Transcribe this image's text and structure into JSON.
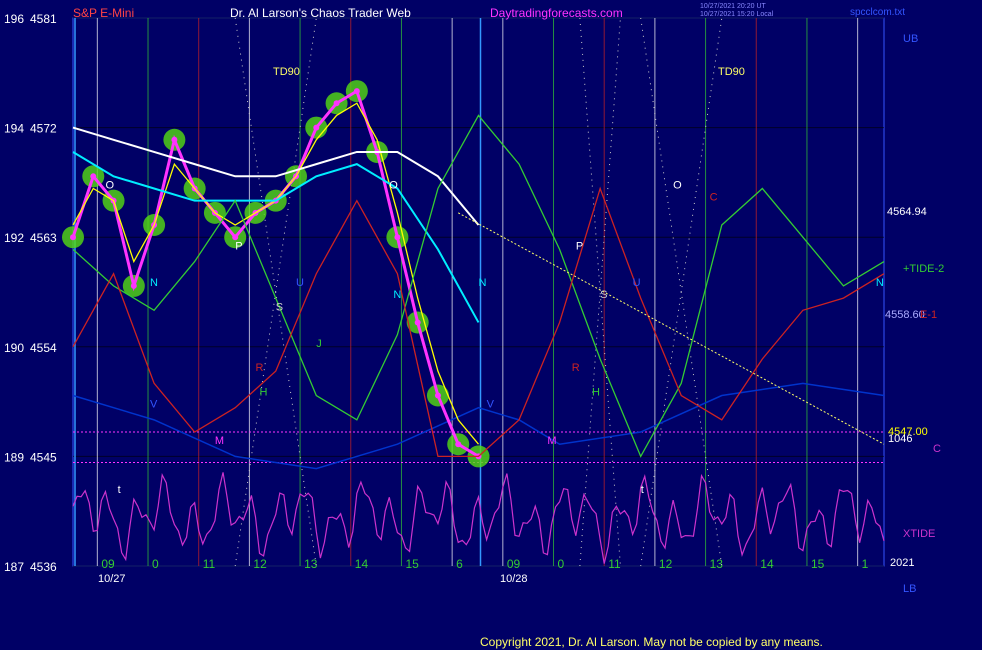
{
  "header": {
    "symbol": "S&P E-Mini",
    "title": "Dr. Al Larson's Chaos Trader Web",
    "site": "Daytradingforecasts.com",
    "stamp_line1": "10/27/2021 20:20 UT",
    "stamp_line2": "10/27/2021 15:20 Local",
    "filename": "spcclcom.txt"
  },
  "footer": {
    "copyright": "Copyright 2021, Dr. Al Larson. May not be copied by any means."
  },
  "labels": {
    "ub": "UB",
    "lb": "LB",
    "year": "2021",
    "price_now": "4564.94",
    "tide2": "+TIDE-2",
    "tide1_price": "4558.60",
    "tide1_suffix": "E-1",
    "price_low": "4547.00",
    "price_low2": "1046",
    "c_marker": "C",
    "xtide": "XTIDE",
    "td90": "TD90",
    "date1": "10/27",
    "date2": "10/28"
  },
  "colors": {
    "background": "#000066",
    "price_bars": "#ff33ff",
    "price_glow": "#55dd11",
    "fast_avg": "#ffff00",
    "slow_avg": "#00eeff",
    "white_avg": "#ffffff",
    "tide_green": "#33cc33",
    "tide_red": "#cc2222",
    "xtide": "#cc33cc",
    "blue_flux": "#0033cc",
    "trend_line": "#ffff66"
  },
  "chart_data": {
    "type": "line",
    "title": "S&P E-Mini",
    "y_left_labels": [
      {
        "a": "196",
        "b": "4581"
      },
      {
        "a": "194",
        "b": "4572"
      },
      {
        "a": "192",
        "b": "4563"
      },
      {
        "a": "190",
        "b": "4554"
      },
      {
        "a": "189",
        "b": "4545"
      },
      {
        "a": "187",
        "b": "4536"
      }
    ],
    "ylim": [
      4536,
      4581
    ],
    "hour_labels": [
      "09",
      "0",
      "11",
      "12",
      "13",
      "14",
      "15",
      "6",
      "09",
      "0",
      "11",
      "12",
      "13",
      "14",
      "15",
      "1"
    ],
    "dates": [
      "10/27",
      "10/28"
    ],
    "letter_markers": [
      "O",
      "N",
      "P",
      "S",
      "U",
      "R",
      "H",
      "J",
      "V",
      "M",
      "t",
      "O",
      "N",
      "N",
      "P",
      "S",
      "U",
      "R",
      "H",
      "V",
      "M",
      "t",
      "O",
      "N",
      "C"
    ],
    "series": [
      {
        "name": "price",
        "x": [
          0,
          5,
          10,
          15,
          20,
          25,
          30,
          35,
          40,
          45,
          50,
          55,
          60,
          65,
          70,
          75,
          80,
          85,
          90,
          95,
          100
        ],
        "values": [
          4563,
          4568,
          4566,
          4559,
          4564,
          4571,
          4567,
          4565,
          4563,
          4565,
          4566,
          4568,
          4572,
          4574,
          4575,
          4570,
          4563,
          4556,
          4550,
          4546,
          4545
        ]
      },
      {
        "name": "fast average",
        "x": [
          0,
          5,
          10,
          15,
          20,
          25,
          30,
          35,
          40,
          45,
          50,
          55,
          60,
          65,
          70,
          75,
          80,
          85,
          90,
          95,
          100
        ],
        "values": [
          4564,
          4567,
          4566,
          4561,
          4564,
          4569,
          4567,
          4565,
          4564,
          4565,
          4566,
          4568,
          4571,
          4573,
          4574,
          4571,
          4565,
          4558,
          4552,
          4548,
          4546
        ]
      },
      {
        "name": "slow average",
        "x": [
          0,
          10,
          20,
          30,
          40,
          50,
          60,
          70,
          80,
          90,
          100
        ],
        "values": [
          4570,
          4568,
          4567,
          4566,
          4566,
          4566,
          4568,
          4569,
          4567,
          4562,
          4556
        ]
      },
      {
        "name": "white average",
        "x": [
          0,
          10,
          20,
          30,
          40,
          50,
          60,
          70,
          80,
          90,
          100
        ],
        "values": [
          4572,
          4571,
          4570,
          4569,
          4568,
          4568,
          4569,
          4570,
          4570,
          4568,
          4564
        ]
      },
      {
        "name": "+TIDE-2",
        "x": [
          0,
          10,
          20,
          30,
          40,
          50,
          60,
          70,
          80,
          90,
          100,
          110,
          120,
          130,
          140,
          150,
          160,
          170,
          180,
          190,
          200
        ],
        "values": [
          4562,
          4559,
          4557,
          4561,
          4566,
          4558,
          4550,
          4548,
          4555,
          4567,
          4573,
          4569,
          4562,
          4553,
          4545,
          4551,
          4564,
          4567,
          4563,
          4559,
          4561
        ]
      },
      {
        "name": "TIDE-1",
        "x": [
          0,
          10,
          20,
          30,
          40,
          50,
          60,
          70,
          80,
          90,
          100,
          110,
          120,
          130,
          140,
          150,
          160,
          170,
          180,
          190,
          200
        ],
        "values": [
          4554,
          4560,
          4551,
          4547,
          4549,
          4552,
          4560,
          4566,
          4560,
          4545,
          4545,
          4548,
          4556,
          4567,
          4558,
          4550,
          4548,
          4553,
          4557,
          4558,
          4560
        ]
      },
      {
        "name": "trend",
        "x": [
          95,
          200
        ],
        "values": [
          4565,
          4546
        ]
      }
    ],
    "reference_levels": [
      {
        "label": "4547.00",
        "value": 4547
      },
      {
        "label": "4545 band",
        "value": 4544.5
      }
    ],
    "grid": true
  }
}
